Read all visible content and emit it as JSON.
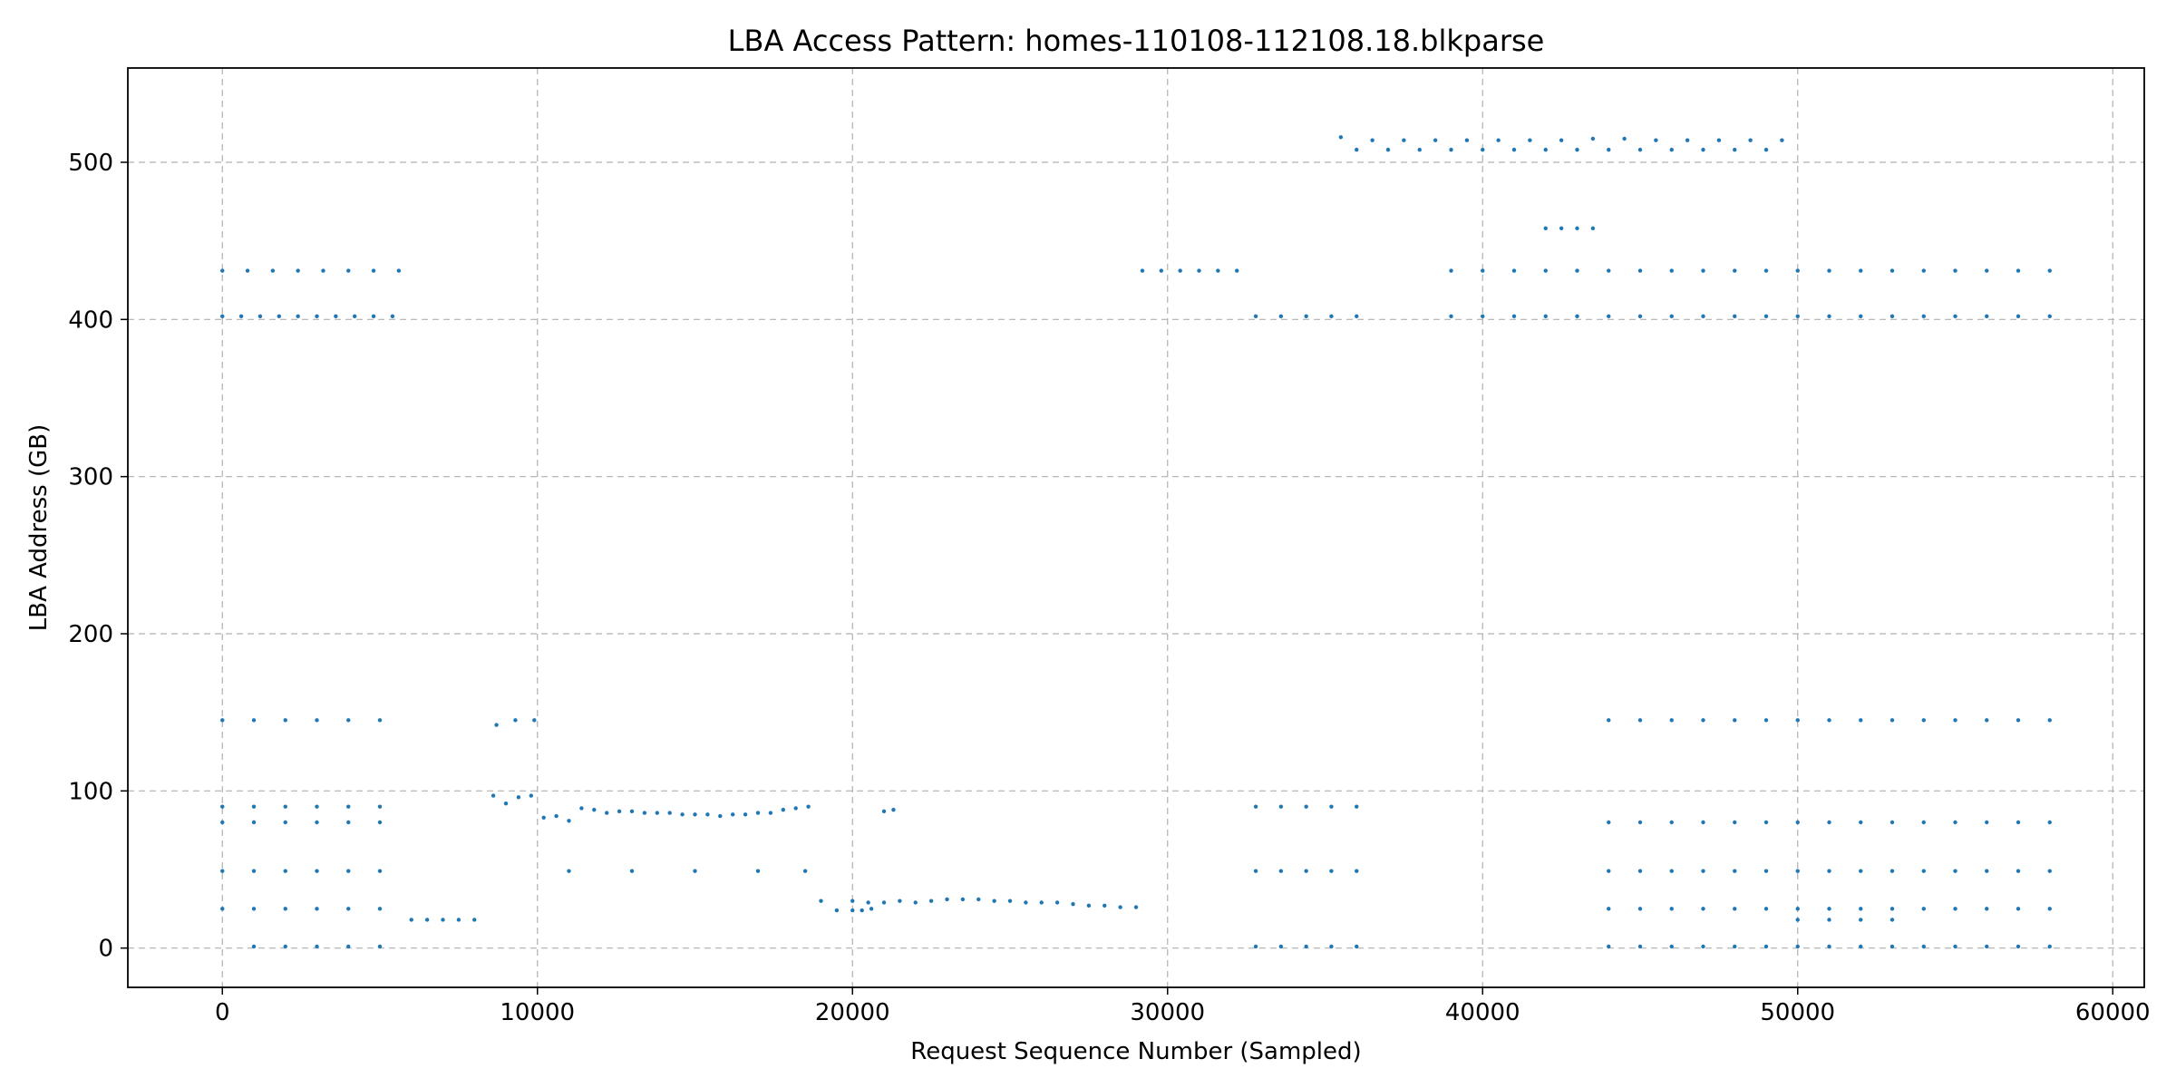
{
  "chart_data": {
    "type": "scatter",
    "title": "LBA Access Pattern: homes-110108-112108.18.blkparse",
    "xlabel": "Request Sequence Number (Sampled)",
    "ylabel": "LBA Address (GB)",
    "xlim": [
      -3000,
      61000
    ],
    "ylim": [
      -25,
      560
    ],
    "x_ticks": [
      0,
      10000,
      20000,
      30000,
      40000,
      50000,
      60000
    ],
    "y_ticks": [
      0,
      100,
      200,
      300,
      400,
      500
    ],
    "grid": true,
    "grid_style": "dashed",
    "legend": "none",
    "marker_color": "#1f77b4",
    "series": [
      {
        "x": [
          0,
          600,
          1200,
          1800,
          2400,
          3000,
          3600,
          4200,
          4800,
          5400,
          0,
          800,
          1600,
          2400,
          3200,
          4000,
          4800,
          5600,
          0,
          1000,
          2000,
          3000,
          4000,
          5000,
          0,
          1000,
          2000,
          3000,
          4000,
          5000,
          0,
          1000,
          2000,
          3000,
          4000,
          5000,
          0,
          1000,
          2000,
          3000,
          4000,
          5000,
          0,
          1000,
          2000,
          3000,
          4000,
          5000,
          6000,
          6500,
          7000,
          7500,
          8000,
          8600,
          9000,
          9400,
          9800,
          10200,
          10600,
          11000,
          11400,
          11800,
          12200,
          12600,
          13000,
          13400,
          13800,
          14200,
          14600,
          15000,
          15400,
          15800,
          16200,
          16600,
          17000,
          17400,
          17800,
          18200,
          18600,
          8700,
          9300,
          9900,
          11000,
          13000,
          15000,
          17000,
          18500,
          19000,
          19500,
          20000,
          20300,
          20600,
          21000,
          21300,
          20000,
          20500,
          21000,
          21500,
          22000,
          22500,
          23000,
          23500,
          24000,
          24500,
          25000,
          25500,
          26000,
          26500,
          27000,
          27500,
          28000,
          28500,
          29000,
          29200,
          29800,
          30400,
          31000,
          31600,
          32200,
          1000,
          2000,
          3000,
          4000,
          5000,
          32800,
          33600,
          34400,
          35200,
          36000,
          36000,
          37000,
          38000,
          39000,
          40000,
          41000,
          42000,
          43000,
          44000,
          45000,
          46000,
          47000,
          48000,
          49000,
          35500,
          36500,
          37500,
          38500,
          39500,
          40500,
          41500,
          42500,
          43500,
          44500,
          45500,
          46500,
          47500,
          48500,
          49500,
          42000,
          42500,
          43000,
          43500,
          39000,
          40000,
          41000,
          42000,
          43000,
          44000,
          45000,
          46000,
          47000,
          48000,
          49000,
          50000,
          51000,
          52000,
          53000,
          54000,
          55000,
          56000,
          57000,
          58000,
          39000,
          40000,
          41000,
          42000,
          43000,
          44000,
          45000,
          46000,
          47000,
          48000,
          49000,
          50000,
          51000,
          52000,
          53000,
          54000,
          55000,
          56000,
          57000,
          58000,
          32800,
          33600,
          34400,
          35200,
          36000,
          32800,
          33600,
          34400,
          35200,
          36000,
          32800,
          33600,
          34400,
          35200,
          36000,
          44000,
          45000,
          46000,
          47000,
          48000,
          49000,
          50000,
          51000,
          52000,
          53000,
          54000,
          55000,
          56000,
          57000,
          58000,
          44000,
          45000,
          46000,
          47000,
          48000,
          49000,
          50000,
          51000,
          52000,
          53000,
          54000,
          55000,
          56000,
          57000,
          58000,
          44000,
          45000,
          46000,
          47000,
          48000,
          49000,
          50000,
          51000,
          52000,
          53000,
          54000,
          55000,
          56000,
          57000,
          58000,
          44000,
          45000,
          46000,
          47000,
          48000,
          49000,
          50000,
          51000,
          52000,
          53000,
          54000,
          55000,
          56000,
          57000,
          58000,
          44000,
          45000,
          46000,
          47000,
          48000,
          49000,
          50000,
          51000,
          52000,
          53000,
          54000,
          55000,
          56000,
          57000,
          58000,
          50000,
          51000,
          52000,
          53000
        ],
        "y": [
          402,
          402,
          402,
          402,
          402,
          402,
          402,
          402,
          402,
          402,
          431,
          431,
          431,
          431,
          431,
          431,
          431,
          431,
          145,
          145,
          145,
          145,
          145,
          145,
          90,
          90,
          90,
          90,
          90,
          90,
          80,
          80,
          80,
          80,
          80,
          80,
          49,
          49,
          49,
          49,
          49,
          49,
          25,
          25,
          25,
          25,
          25,
          25,
          18,
          18,
          18,
          18,
          18,
          97,
          92,
          96,
          97,
          83,
          84,
          81,
          89,
          88,
          86,
          87,
          87,
          86,
          86,
          86,
          85,
          85,
          85,
          84,
          85,
          85,
          86,
          86,
          88,
          89,
          90,
          142,
          145,
          145,
          49,
          49,
          49,
          49,
          49,
          30,
          24,
          24,
          24,
          25,
          87,
          88,
          30,
          29,
          29,
          30,
          29,
          30,
          31,
          31,
          31,
          30,
          30,
          29,
          29,
          29,
          28,
          27,
          27,
          26,
          26,
          431,
          431,
          431,
          431,
          431,
          431,
          1,
          1,
          1,
          1,
          1,
          1,
          1,
          1,
          1,
          1,
          508,
          508,
          508,
          508,
          508,
          508,
          508,
          508,
          508,
          508,
          508,
          508,
          508,
          508,
          516,
          514,
          514,
          514,
          514,
          514,
          514,
          514,
          515,
          515,
          514,
          514,
          514,
          514,
          514,
          458,
          458,
          458,
          458,
          402,
          402,
          402,
          402,
          402,
          402,
          402,
          402,
          402,
          402,
          402,
          402,
          402,
          402,
          402,
          402,
          402,
          402,
          402,
          402,
          431,
          431,
          431,
          431,
          431,
          431,
          431,
          431,
          431,
          431,
          431,
          431,
          431,
          431,
          431,
          431,
          431,
          431,
          431,
          431,
          402,
          402,
          402,
          402,
          402,
          90,
          90,
          90,
          90,
          90,
          49,
          49,
          49,
          49,
          49,
          145,
          145,
          145,
          145,
          145,
          145,
          145,
          145,
          145,
          145,
          145,
          145,
          145,
          145,
          145,
          80,
          80,
          80,
          80,
          80,
          80,
          80,
          80,
          80,
          80,
          80,
          80,
          80,
          80,
          80,
          49,
          49,
          49,
          49,
          49,
          49,
          49,
          49,
          49,
          49,
          49,
          49,
          49,
          49,
          49,
          25,
          25,
          25,
          25,
          25,
          25,
          25,
          25,
          25,
          25,
          25,
          25,
          25,
          25,
          25,
          1,
          1,
          1,
          1,
          1,
          1,
          1,
          1,
          1,
          1,
          1,
          1,
          1,
          1,
          1,
          18,
          18,
          18,
          18
        ]
      }
    ]
  }
}
